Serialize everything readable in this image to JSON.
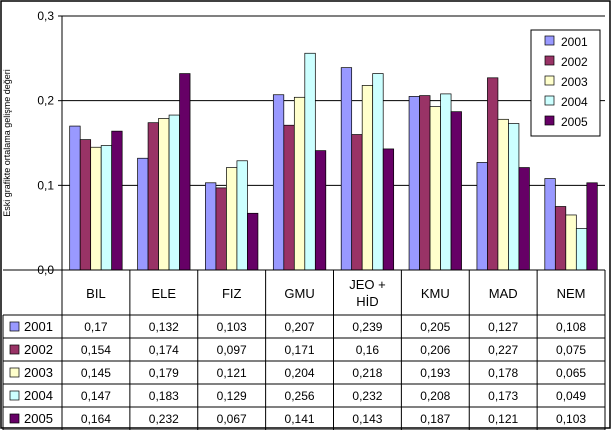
{
  "chart_data": {
    "type": "bar",
    "categories": [
      "BIL",
      "ELE",
      "FIZ",
      "GMU",
      "JEO + HİD",
      "KMU",
      "MAD",
      "NEM"
    ],
    "series": [
      {
        "name": "2001",
        "color": "#9999ff",
        "values": [
          0.17,
          0.132,
          0.103,
          0.207,
          0.239,
          0.205,
          0.127,
          0.108
        ]
      },
      {
        "name": "2002",
        "color": "#993366",
        "values": [
          0.154,
          0.174,
          0.097,
          0.171,
          0.16,
          0.206,
          0.227,
          0.075
        ]
      },
      {
        "name": "2003",
        "color": "#ffffcc",
        "values": [
          0.145,
          0.179,
          0.121,
          0.204,
          0.218,
          0.193,
          0.178,
          0.065
        ]
      },
      {
        "name": "2004",
        "color": "#ccffff",
        "values": [
          0.147,
          0.183,
          0.129,
          0.256,
          0.232,
          0.208,
          0.173,
          0.049
        ]
      },
      {
        "name": "2005",
        "color": "#660066",
        "values": [
          0.164,
          0.232,
          0.067,
          0.141,
          0.143,
          0.187,
          0.121,
          0.103
        ]
      }
    ],
    "table_values": [
      [
        "0,17",
        "0,132",
        "0,103",
        "0,207",
        "0,239",
        "0,205",
        "0,127",
        "0,108"
      ],
      [
        "0,154",
        "0,174",
        "0,097",
        "0,171",
        "0,16",
        "0,206",
        "0,227",
        "0,075"
      ],
      [
        "0,145",
        "0,179",
        "0,121",
        "0,204",
        "0,218",
        "0,193",
        "0,178",
        "0,065"
      ],
      [
        "0,147",
        "0,183",
        "0,129",
        "0,256",
        "0,232",
        "0,208",
        "0,173",
        "0,049"
      ],
      [
        "0,164",
        "0,232",
        "0,067",
        "0,141",
        "0,143",
        "0,187",
        "0,121",
        "0,103"
      ]
    ],
    "ylim": [
      0,
      0.3
    ],
    "yticks": [
      0,
      0.1,
      0.2,
      0.3
    ],
    "ytick_labels": [
      "0,0",
      "0,1",
      "0,2",
      "0,3"
    ],
    "ylabel": "Eski grafikte ortalama gelişme değeri",
    "grid": true,
    "legend_position": "top-right",
    "data_table": true
  }
}
